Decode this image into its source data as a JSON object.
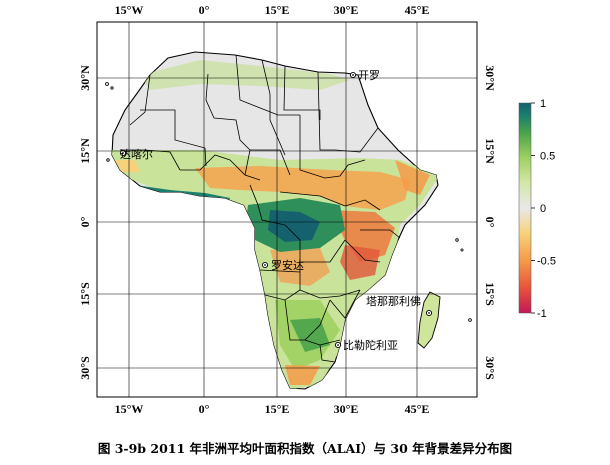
{
  "map": {
    "top_ticks": [
      "15°W",
      "0°",
      "15°E",
      "30°E",
      "45°E"
    ],
    "bottom_ticks": [
      "15°W",
      "0°",
      "15°E",
      "30°E",
      "45°E"
    ],
    "left_ticks": [
      "30°N",
      "15°N",
      "0°",
      "15°S",
      "30°S"
    ],
    "right_ticks": [
      "30°N",
      "15°N",
      "0°",
      "15°S",
      "30°S"
    ],
    "cities": [
      {
        "name": "开罗"
      },
      {
        "name": "达喀尔"
      },
      {
        "name": "罗安达"
      },
      {
        "name": "塔那那利佛"
      },
      {
        "name": "比勒陀利亚"
      }
    ],
    "legend": {
      "ticks": [
        "1",
        "0.5",
        "0",
        "-0.5",
        "-1"
      ],
      "range": [
        -1,
        1
      ],
      "colors": [
        "#c2185b",
        "#e8543a",
        "#f59a48",
        "#f7d27a",
        "#e8e8e8",
        "#d4e7a8",
        "#9fd060",
        "#4aa24a",
        "#1a7f6c",
        "#15626e"
      ]
    },
    "colors": {
      "land_base": "#e6e6e6",
      "grid": "#000000",
      "border": "#000000"
    }
  },
  "caption": "图 3-9b 2011 年非洲平均叶面积指数（ALAI）与 30 年背景差异分布图"
}
